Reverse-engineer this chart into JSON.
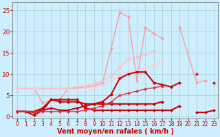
{
  "background_color": "#cceeff",
  "grid_color": "#aacccc",
  "xlabel": "Vent moyen/en rafales ( km/h )",
  "xlabel_color": "#cc0000",
  "tick_color": "#cc0000",
  "xlim": [
    -0.5,
    23.5
  ],
  "ylim": [
    -0.5,
    27
  ],
  "yticks": [
    0,
    5,
    10,
    15,
    20,
    25
  ],
  "xticks": [
    0,
    1,
    2,
    3,
    4,
    5,
    6,
    7,
    8,
    9,
    10,
    11,
    12,
    13,
    14,
    15,
    16,
    17,
    18,
    19,
    20,
    21,
    22,
    23
  ],
  "lines": [
    {
      "x": [
        0,
        1,
        2,
        3,
        4,
        5,
        6,
        7,
        8,
        9,
        10,
        11,
        12,
        13,
        14,
        15,
        16,
        17,
        18,
        19,
        21,
        22,
        23
      ],
      "y": [
        6.7,
        6.7,
        6.7,
        3.2,
        4.0,
        4.0,
        6.7,
        6.7,
        7.0,
        7.2,
        8.0,
        16.0,
        24.5,
        23.5,
        8.5,
        21.0,
        19.5,
        18.5,
        null,
        21.0,
        8.0,
        8.5,
        null
      ],
      "color": "#ff9999",
      "lw": 1.0,
      "marker": "D",
      "ms": 2.5
    },
    {
      "x": [
        0,
        1,
        2,
        3,
        4,
        5,
        6,
        7,
        8,
        9,
        10,
        11,
        12,
        13,
        14,
        15,
        16,
        17,
        18,
        19,
        20,
        21,
        22,
        23
      ],
      "y": [
        6.7,
        6.7,
        6.7,
        6.7,
        6.7,
        6.7,
        6.7,
        7.0,
        7.2,
        7.8,
        8.5,
        9.5,
        11.5,
        13.5,
        14.0,
        14.5,
        15.5,
        null,
        null,
        null,
        null,
        null,
        null,
        null
      ],
      "color": "#ffbbbb",
      "lw": 1.0,
      "marker": "D",
      "ms": 2.5
    },
    {
      "x": [
        0,
        1,
        2,
        3,
        4,
        5,
        6,
        7,
        8,
        9,
        10,
        11,
        12,
        13,
        14,
        15,
        16,
        17,
        18,
        19,
        20,
        21,
        22,
        23
      ],
      "y": [
        6.5,
        6.5,
        6.5,
        6.5,
        6.5,
        6.5,
        6.5,
        6.5,
        6.8,
        7.0,
        7.5,
        8.5,
        9.5,
        10.5,
        11.0,
        11.5,
        12.0,
        13.0,
        null,
        null,
        null,
        null,
        null,
        null
      ],
      "color": "#ffcccc",
      "lw": 1.0,
      "marker": "D",
      "ms": 2.5
    },
    {
      "x": [
        0,
        1,
        2,
        3,
        4,
        5,
        6,
        7,
        8,
        9,
        10,
        11,
        12,
        13,
        14,
        15,
        16,
        17,
        18,
        19,
        20,
        21,
        22,
        23
      ],
      "y": [
        1.2,
        1.2,
        1.0,
        1.5,
        2.0,
        1.5,
        1.5,
        2.0,
        2.5,
        3.0,
        3.5,
        5.2,
        9.0,
        10.0,
        10.5,
        10.5,
        8.0,
        7.5,
        7.0,
        8.0,
        null,
        10.0,
        null,
        8.0
      ],
      "color": "#cc0000",
      "lw": 1.5,
      "marker": "D",
      "ms": 2.5
    },
    {
      "x": [
        0,
        1,
        2,
        3,
        4,
        5,
        6,
        7,
        8,
        9,
        10,
        11,
        12,
        13,
        14,
        15,
        16,
        17,
        18,
        19,
        20,
        21,
        22,
        23
      ],
      "y": [
        1.2,
        1.2,
        0.3,
        1.5,
        4.0,
        4.0,
        4.0,
        4.0,
        2.0,
        1.5,
        1.5,
        1.5,
        1.5,
        1.5,
        1.5,
        1.5,
        1.5,
        1.5,
        1.5,
        2.5,
        null,
        1.0,
        1.0,
        1.5
      ],
      "color": "#cc0000",
      "lw": 1.5,
      "marker": "D",
      "ms": 2.5
    },
    {
      "x": [
        0,
        1,
        2,
        3,
        4,
        5,
        6,
        7,
        8,
        9,
        10,
        11,
        12,
        13,
        14,
        15,
        16,
        17
      ],
      "y": [
        1.2,
        1.2,
        1.2,
        2.0,
        4.0,
        3.5,
        3.5,
        3.5,
        3.0,
        3.0,
        3.0,
        3.0,
        3.0,
        3.0,
        3.0,
        3.0,
        3.0,
        3.5
      ],
      "color": "#cc0000",
      "lw": 1.5,
      "marker": "D",
      "ms": 2.5
    },
    {
      "x": [
        0,
        1,
        2,
        3,
        4,
        5,
        6,
        7,
        8,
        9,
        10,
        11,
        12,
        13,
        14,
        15,
        16,
        17,
        18,
        19,
        20,
        21,
        22,
        23
      ],
      "y": [
        1.2,
        1.2,
        1.2,
        1.2,
        1.2,
        1.2,
        1.2,
        1.2,
        1.5,
        2.0,
        2.5,
        3.5,
        5.0,
        5.5,
        6.0,
        6.5,
        6.8,
        7.2,
        null,
        null,
        null,
        null,
        null,
        null
      ],
      "color": "#dd3333",
      "lw": 1.0,
      "marker": "D",
      "ms": 2.5
    }
  ]
}
